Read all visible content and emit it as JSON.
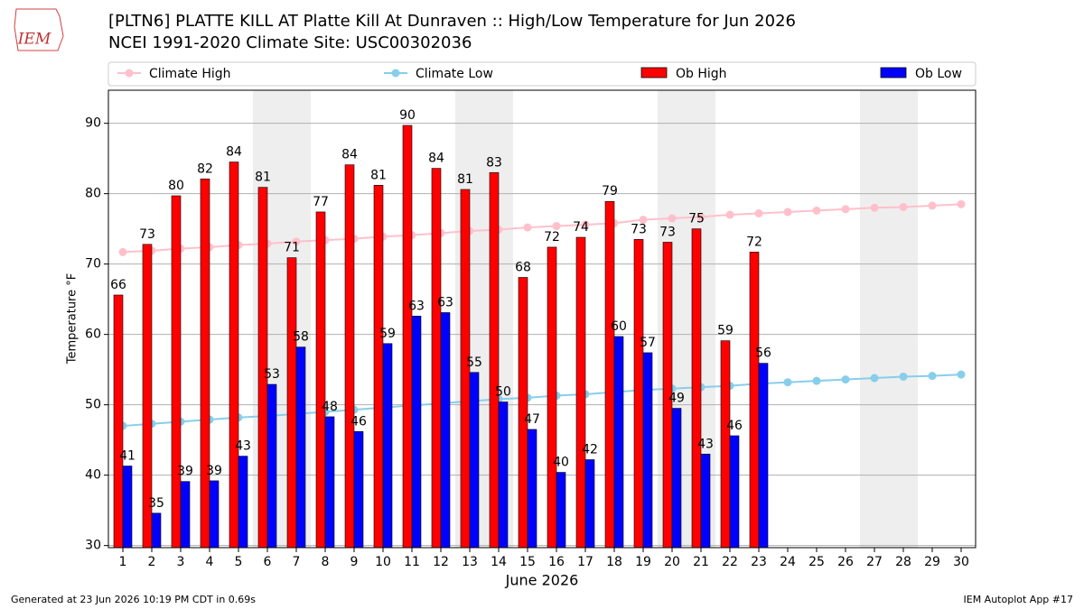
{
  "chart_data": {
    "type": "bar",
    "title": "[PLTN6] PLATTE KILL  AT Platte Kill At Dunraven :: High/Low Temperature for Jun 2026",
    "subtitle": "NCEI 1991-2020 Climate Site: USC00302036",
    "xlabel": "June 2026",
    "ylabel": "Temperature °F",
    "footer_left": "Generated at 23 Jun 2026 10:19 PM CDT in 0.69s",
    "footer_right": "IEM Autoplot App #17",
    "logo": "IEM",
    "x": [
      1,
      2,
      3,
      4,
      5,
      6,
      7,
      8,
      9,
      10,
      11,
      12,
      13,
      14,
      15,
      16,
      17,
      18,
      19,
      20,
      21,
      22,
      23,
      24,
      25,
      26,
      27,
      28,
      29,
      30
    ],
    "xlim": [
      0.5,
      30.5
    ],
    "xticks": [
      1,
      2,
      3,
      4,
      5,
      6,
      7,
      8,
      9,
      10,
      11,
      12,
      13,
      14,
      15,
      16,
      17,
      18,
      19,
      20,
      21,
      22,
      23,
      24,
      25,
      26,
      27,
      28,
      29,
      30
    ],
    "ylim": [
      29.7,
      94.7
    ],
    "yticks": [
      30,
      40,
      50,
      60,
      70,
      80,
      90
    ],
    "grid": true,
    "series": [
      {
        "name": "Climate High",
        "type": "line",
        "color": "#ffc0cb",
        "values": [
          71.7,
          71.9,
          72.2,
          72.4,
          72.7,
          72.9,
          73.2,
          73.4,
          73.6,
          73.9,
          74.1,
          74.4,
          74.7,
          74.9,
          75.2,
          75.4,
          75.6,
          75.8,
          76.3,
          76.5,
          76.7,
          77.0,
          77.2,
          77.4,
          77.6,
          77.8,
          78.0,
          78.1,
          78.3,
          78.5
        ]
      },
      {
        "name": "Climate Low",
        "type": "line",
        "color": "#87ceeb",
        "values": [
          47.0,
          47.3,
          47.6,
          47.9,
          48.2,
          48.4,
          48.7,
          49.0,
          49.3,
          49.6,
          49.9,
          50.2,
          50.5,
          50.8,
          51.0,
          51.3,
          51.5,
          51.8,
          52.1,
          52.3,
          52.5,
          52.7,
          53.0,
          53.2,
          53.4,
          53.6,
          53.8,
          54.0,
          54.1,
          54.3
        ]
      },
      {
        "name": "Ob High",
        "type": "bar",
        "color": "#ff0000",
        "values": [
          65.6,
          72.8,
          79.7,
          82.1,
          84.5,
          80.9,
          70.9,
          77.4,
          84.1,
          81.2,
          89.7,
          83.6,
          80.6,
          83.0,
          68.1,
          72.4,
          73.8,
          78.9,
          73.5,
          73.1,
          75.0,
          59.1,
          71.7,
          null,
          null,
          null,
          null,
          null,
          null,
          null
        ],
        "value_labels": [
          "66",
          "73",
          "80",
          "82",
          "84",
          "81",
          "71",
          "77",
          "84",
          "81",
          "90",
          "84",
          "81",
          "83",
          "68",
          "72",
          "74",
          "79",
          "73",
          "73",
          "75",
          "59",
          "72",
          null,
          null,
          null,
          null,
          null,
          null,
          null
        ]
      },
      {
        "name": "Ob Low",
        "type": "bar",
        "color": "#0000ff",
        "values": [
          41.3,
          34.6,
          39.1,
          39.2,
          42.7,
          52.9,
          58.2,
          48.3,
          46.2,
          58.7,
          62.6,
          63.1,
          54.6,
          50.4,
          46.5,
          40.4,
          42.2,
          59.7,
          57.4,
          49.5,
          43.0,
          45.6,
          55.9,
          null,
          null,
          null,
          null,
          null,
          null,
          null
        ],
        "value_labels": [
          "41",
          "35",
          "39",
          "39",
          "43",
          "53",
          "58",
          "48",
          "46",
          "59",
          "63",
          "63",
          "55",
          "50",
          "47",
          "40",
          "42",
          "60",
          "57",
          "49",
          "43",
          "46",
          "56",
          null,
          null,
          null,
          null,
          null,
          null,
          null
        ]
      }
    ]
  }
}
